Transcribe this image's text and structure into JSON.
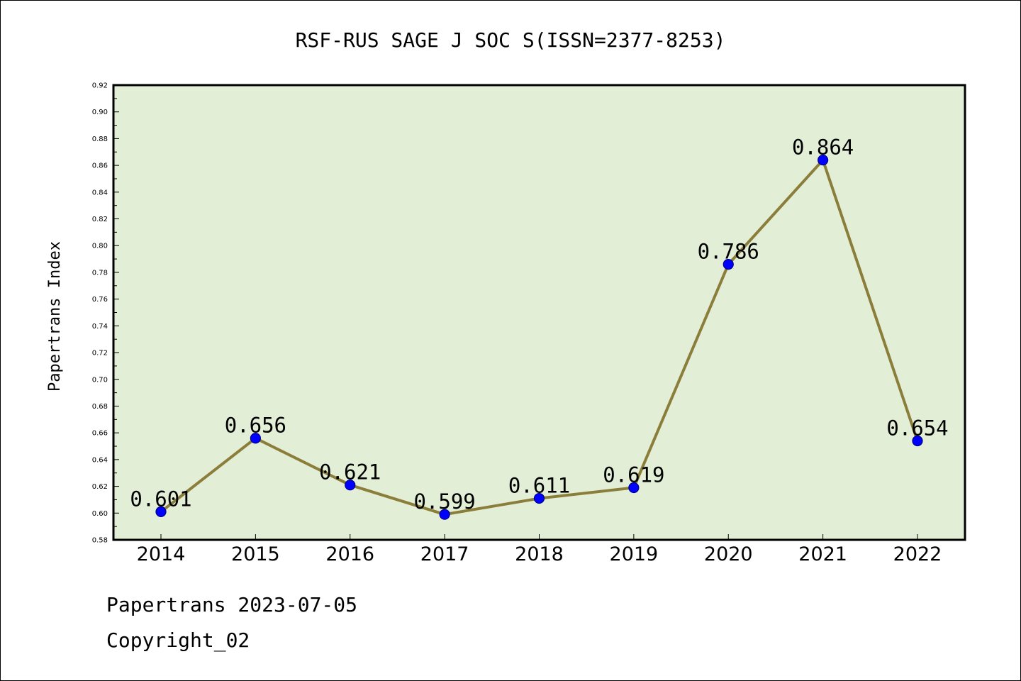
{
  "chart_data": {
    "type": "line",
    "title": "RSF-RUS SAGE J SOC S(ISSN=2377-8253)",
    "xlabel": "",
    "ylabel": "Papertrans Index",
    "categories": [
      "2014",
      "2015",
      "2016",
      "2017",
      "2018",
      "2019",
      "2020",
      "2021",
      "2022"
    ],
    "series": [
      {
        "values": [
          0.601,
          0.656,
          0.621,
          0.599,
          0.611,
          0.619,
          0.786,
          0.864,
          0.654
        ],
        "labels": [
          "0.601",
          "0.656",
          "0.621",
          "0.599",
          "0.611",
          "0.619",
          "0.786",
          "0.864",
          "0.654"
        ]
      }
    ],
    "ylim": [
      0.58,
      0.92
    ],
    "ytick_labels": [
      "0.58",
      "0.60",
      "0.62",
      "0.64",
      "0.66",
      "0.68",
      "0.70",
      "0.72",
      "0.74",
      "0.76",
      "0.78",
      "0.80",
      "0.82",
      "0.84",
      "0.86",
      "0.88",
      "0.90",
      "0.92"
    ],
    "grid": false,
    "colors": {
      "plot_background": "#e2efd6",
      "line": "#8b7d3a",
      "marker_fill": "#0000ff",
      "marker_edge": "#00008b"
    }
  },
  "footer": {
    "line1": "Papertrans 2023-07-05",
    "line2": "Copyright_02"
  }
}
